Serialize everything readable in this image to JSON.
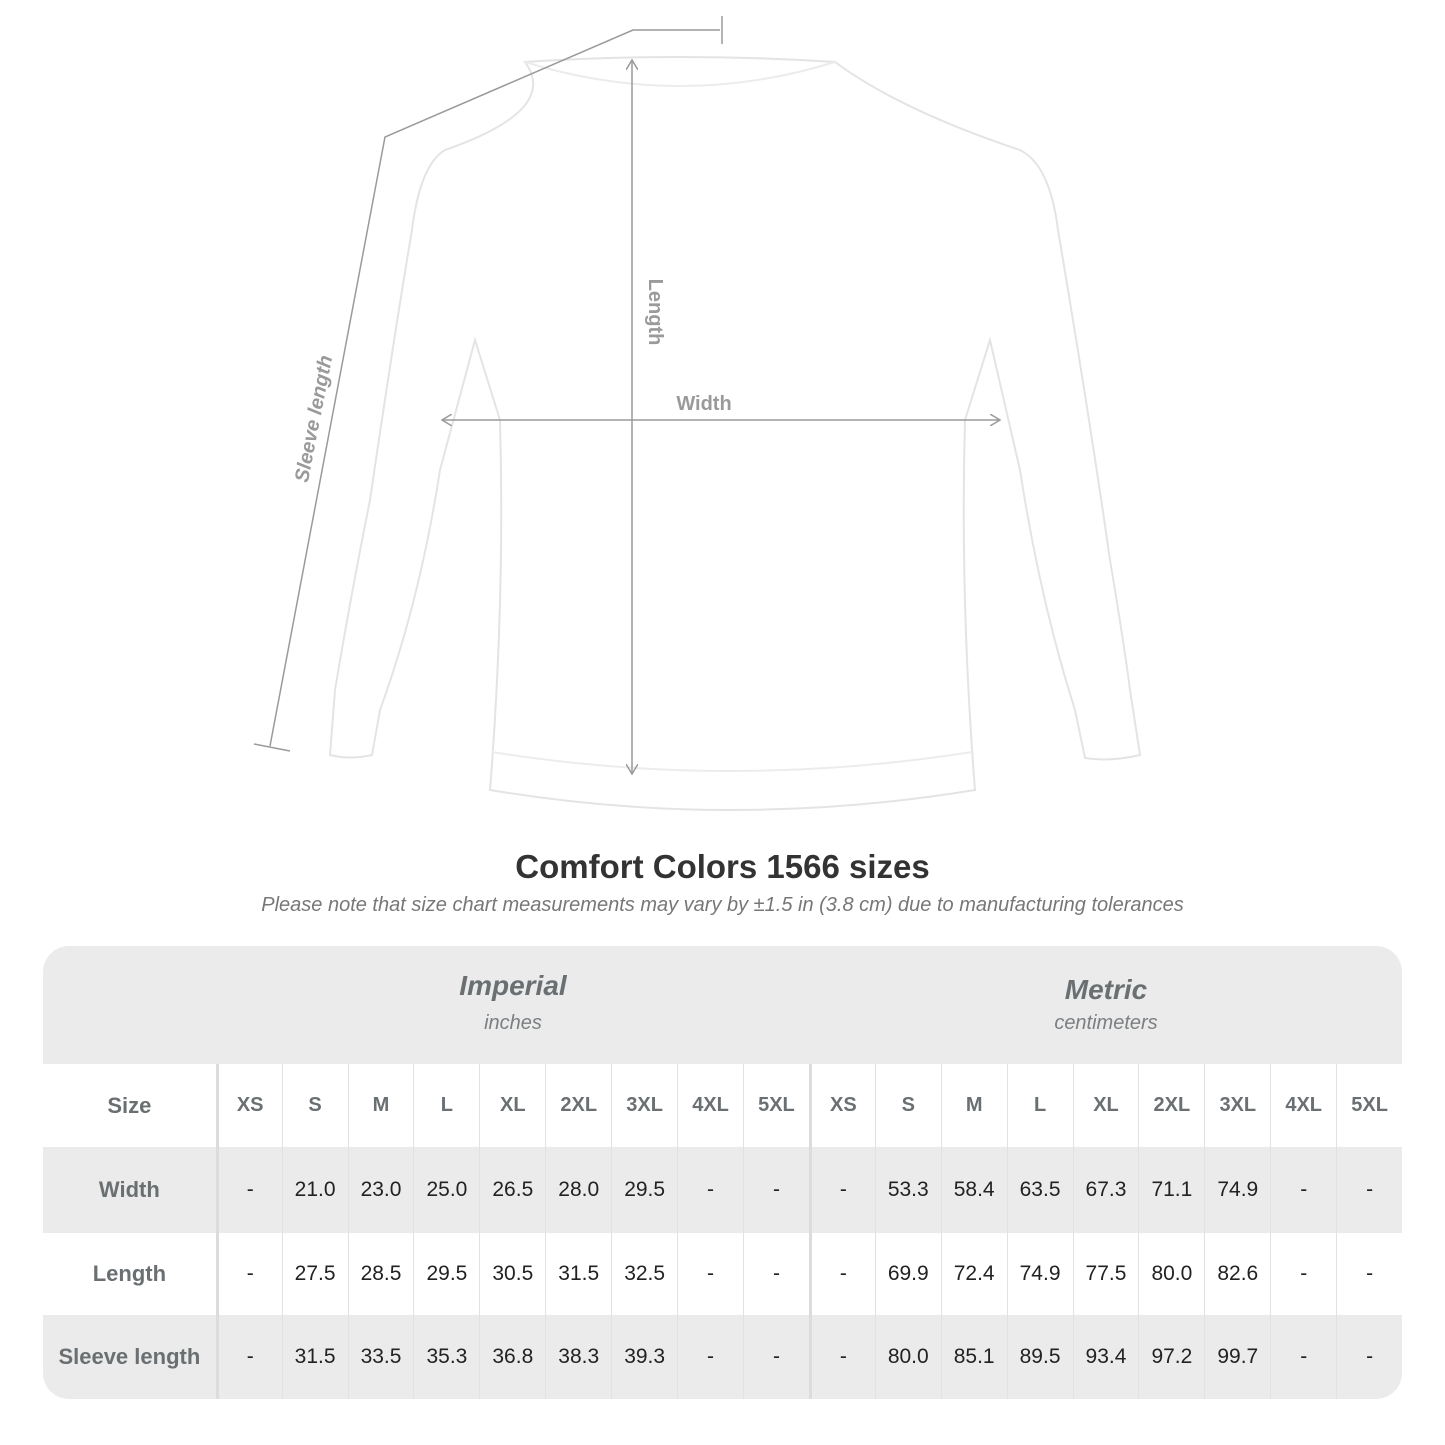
{
  "diagram": {
    "labels": {
      "length": "Length",
      "width": "Width",
      "sleeve": "Sleeve length"
    },
    "colors": {
      "measure_line": "#9a9a9a",
      "garment": "#ffffff",
      "garment_outline": "#e4e4e4"
    }
  },
  "title": "Comfort Colors 1566 sizes",
  "note": "Please note that size chart measurements may vary by ±1.5 in (3.8 cm) due to manufacturing tolerances",
  "table": {
    "imperial": {
      "name": "Imperial",
      "unit": "inches"
    },
    "metric": {
      "name": "Metric",
      "unit": "centimeters"
    },
    "size_label": "Size",
    "sizes": [
      "XS",
      "S",
      "M",
      "L",
      "XL",
      "2XL",
      "3XL",
      "4XL",
      "5XL"
    ],
    "rows": [
      {
        "label": "Width",
        "imperial": [
          "-",
          "21.0",
          "23.0",
          "25.0",
          "26.5",
          "28.0",
          "29.5",
          "-",
          "-"
        ],
        "metric": [
          "-",
          "53.3",
          "58.4",
          "63.5",
          "67.3",
          "71.1",
          "74.9",
          "-",
          "-"
        ]
      },
      {
        "label": "Length",
        "imperial": [
          "-",
          "27.5",
          "28.5",
          "29.5",
          "30.5",
          "31.5",
          "32.5",
          "-",
          "-"
        ],
        "metric": [
          "-",
          "69.9",
          "72.4",
          "74.9",
          "77.5",
          "80.0",
          "82.6",
          "-",
          "-"
        ]
      },
      {
        "label": "Sleeve length",
        "imperial": [
          "-",
          "31.5",
          "33.5",
          "35.3",
          "36.8",
          "38.3",
          "39.3",
          "-",
          "-"
        ],
        "metric": [
          "-",
          "80.0",
          "85.1",
          "89.5",
          "93.4",
          "97.2",
          "99.7",
          "-",
          "-"
        ]
      }
    ]
  }
}
